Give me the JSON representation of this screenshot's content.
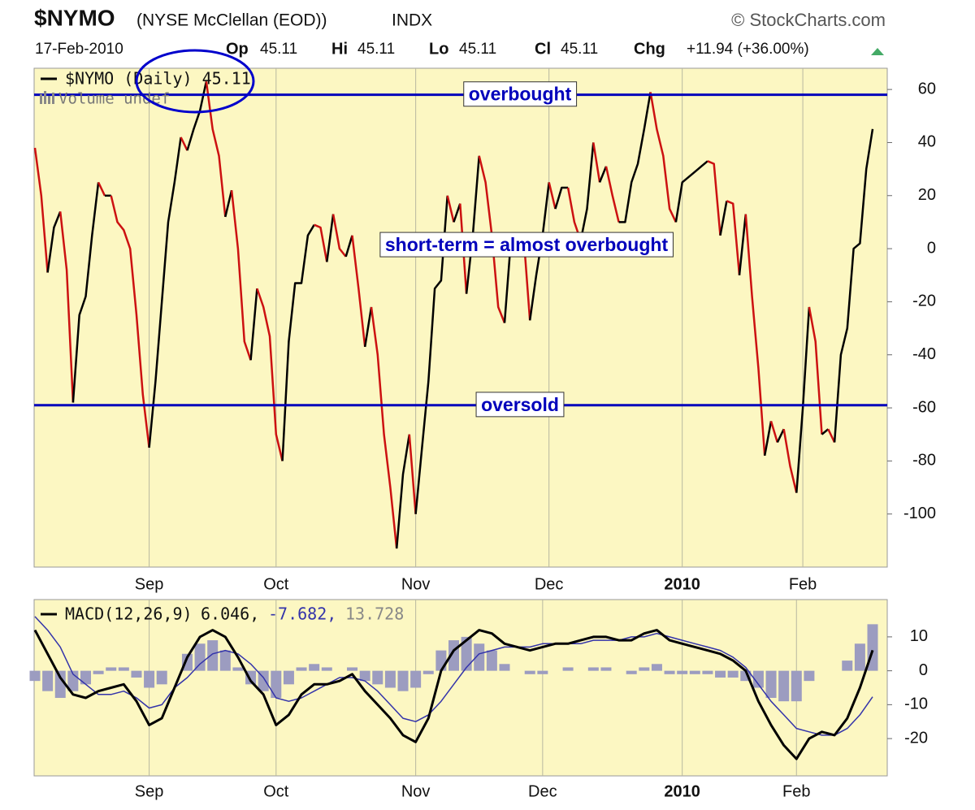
{
  "header": {
    "symbol": "$NYMO",
    "name": "(NYSE McClellan (EOD))",
    "exchange": "INDX",
    "source": "© StockCharts.com",
    "date": "17-Feb-2010",
    "quote": [
      {
        "label": "Op",
        "value": "45.11"
      },
      {
        "label": "Hi",
        "value": "45.11"
      },
      {
        "label": "Lo",
        "value": "45.11"
      },
      {
        "label": "Cl",
        "value": "45.11"
      }
    ],
    "change": {
      "label": "Chg",
      "value": "+11.94 (+36.00%)"
    }
  },
  "chart_data": [
    {
      "type": "line",
      "legend": "$NYMO (Daily) 45.11",
      "volume_legend": "Volume undef",
      "categories": [
        null,
        null,
        null,
        null,
        null,
        null,
        null,
        null,
        null,
        null,
        null,
        null,
        null,
        null,
        null,
        null,
        null,
        null,
        "Sep",
        null,
        null,
        null,
        null,
        null,
        null,
        null,
        null,
        null,
        null,
        null,
        null,
        null,
        null,
        null,
        null,
        null,
        null,
        null,
        "Oct",
        null,
        null,
        null,
        null,
        null,
        null,
        null,
        null,
        null,
        null,
        null,
        null,
        null,
        null,
        null,
        null,
        null,
        null,
        null,
        null,
        null,
        "Nov",
        null,
        null,
        null,
        null,
        null,
        null,
        null,
        null,
        null,
        null,
        null,
        null,
        null,
        null,
        null,
        null,
        null,
        null,
        null,
        null,
        "Dec",
        null,
        null,
        null,
        null,
        null,
        null,
        null,
        null,
        null,
        null,
        null,
        null,
        null,
        null,
        null,
        null,
        null,
        null,
        null,
        null,
        "2010",
        null,
        null,
        null,
        null,
        null,
        null,
        null,
        null,
        null,
        null,
        null,
        null,
        null,
        null,
        null,
        null,
        null,
        null,
        "Feb",
        null,
        null,
        null,
        null,
        null,
        null,
        null,
        null,
        null,
        null,
        null
      ],
      "values": [
        38,
        20,
        -9,
        8,
        14,
        -8,
        -58,
        -25,
        -18,
        5,
        25,
        20,
        20,
        10,
        7,
        0,
        -25,
        -55,
        -75,
        -50,
        -20,
        10,
        25,
        42,
        37,
        45,
        52,
        63,
        45,
        35,
        12,
        22,
        0,
        -35,
        -42,
        -15,
        -22,
        -33,
        -70,
        -80,
        -35,
        -13,
        -13,
        5,
        9,
        8,
        -5,
        13,
        0,
        -3,
        5,
        -15,
        -37,
        -22,
        -40,
        -70,
        -90,
        -113,
        -85,
        -70,
        -100,
        -75,
        -50,
        -15,
        -12,
        20,
        10,
        17,
        -17,
        5,
        35,
        25,
        5,
        -22,
        -28,
        3,
        0,
        5,
        -27,
        -10,
        5,
        25,
        15,
        23,
        23,
        10,
        3,
        15,
        40,
        25,
        31,
        20,
        10,
        10,
        25,
        32,
        45,
        59,
        45,
        35,
        15,
        10,
        25,
        27,
        29,
        31,
        33,
        32,
        5,
        18,
        17,
        -10,
        13,
        -18,
        -45,
        -78,
        -65,
        -73,
        -68,
        -82,
        -92,
        -60,
        -22,
        -35,
        -70,
        -68,
        -73,
        -40,
        -30,
        0,
        2,
        30,
        45.11
      ],
      "up_color": "#000000",
      "down_color": "#cc1111",
      "ylim": [
        -120,
        68
      ],
      "yticks": [
        60,
        40,
        20,
        0,
        -20,
        -40,
        -60,
        -80,
        -100
      ],
      "hlines": [
        {
          "value": 58,
          "label": "overbought",
          "color": "#0000bb"
        },
        {
          "value": -59,
          "label": "oversold",
          "color": "#0000bb"
        }
      ],
      "annotations": [
        "short-term = almost overbought"
      ]
    },
    {
      "type": "macd",
      "legend": [
        "MACD(12,26,9)",
        "6.046,",
        "-7.682,",
        "13.728"
      ],
      "categories": [
        null,
        null,
        null,
        null,
        null,
        null,
        null,
        null,
        null,
        "Sep",
        null,
        null,
        null,
        null,
        null,
        null,
        null,
        null,
        null,
        "Oct",
        null,
        null,
        null,
        null,
        null,
        null,
        null,
        null,
        null,
        null,
        "Nov",
        null,
        null,
        null,
        null,
        null,
        null,
        null,
        null,
        null,
        "Dec",
        null,
        null,
        null,
        null,
        null,
        null,
        null,
        null,
        null,
        null,
        "2010",
        null,
        null,
        null,
        null,
        null,
        null,
        null,
        null,
        "Feb",
        null,
        null,
        null,
        null,
        null,
        null
      ],
      "series": [
        {
          "type": "histogram",
          "color": "#9c9cc0",
          "values": [
            -3,
            -6,
            -8,
            -6,
            -4,
            -1,
            1,
            1,
            -2,
            -5,
            -4,
            0,
            5,
            8,
            9,
            6,
            1,
            -4,
            -6,
            -8,
            -4,
            1,
            2,
            1,
            0,
            1,
            -3,
            -4,
            -5,
            -6,
            -5,
            -1,
            6,
            9,
            10,
            8,
            6,
            2,
            0,
            -1,
            -1,
            0,
            1,
            0,
            1,
            1,
            0,
            -1,
            1,
            2,
            -1,
            -1,
            -1,
            -1,
            -2,
            -2,
            -3,
            -5,
            -8,
            -9,
            -9,
            -3,
            0,
            0,
            3,
            8,
            13.728
          ]
        },
        {
          "type": "line",
          "color": "#3333aa",
          "width": 1.5,
          "values": [
            16,
            12,
            7,
            -1,
            -4,
            -7,
            -7,
            -6,
            -8,
            -11,
            -10,
            -5,
            -2,
            2,
            5,
            6,
            5,
            2,
            -2,
            -8,
            -9,
            -8,
            -6,
            -4,
            -2,
            -2,
            -3,
            -6,
            -10,
            -14,
            -15,
            -13,
            -9,
            -4,
            1,
            5,
            6,
            7,
            7,
            7,
            8,
            8,
            8,
            8,
            9,
            9,
            9,
            10,
            10,
            11,
            10,
            9,
            8,
            7,
            6,
            4,
            1,
            -4,
            -9,
            -13,
            -17,
            -18,
            -19,
            -19,
            -17,
            -13,
            -7.682
          ]
        },
        {
          "type": "line",
          "color": "#000000",
          "width": 3,
          "values": [
            12,
            5,
            -2,
            -7,
            -8,
            -6,
            -5,
            -4,
            -9,
            -16,
            -14,
            -5,
            4,
            10,
            12,
            10,
            4,
            -3,
            -7,
            -16,
            -13,
            -7,
            -4,
            -4,
            -3,
            -1,
            -6,
            -10,
            -14,
            -19,
            -21,
            -14,
            0,
            6,
            9,
            12,
            11,
            8,
            7,
            6,
            7,
            8,
            8,
            9,
            10,
            10,
            9,
            9,
            11,
            12,
            9,
            8,
            7,
            6,
            5,
            3,
            0,
            -9,
            -16,
            -22,
            -26,
            -20,
            -18,
            -19,
            -14,
            -5,
            6.046
          ]
        }
      ],
      "ylim": [
        -31,
        21
      ],
      "yticks": [
        10,
        0,
        -10,
        -20
      ]
    }
  ]
}
